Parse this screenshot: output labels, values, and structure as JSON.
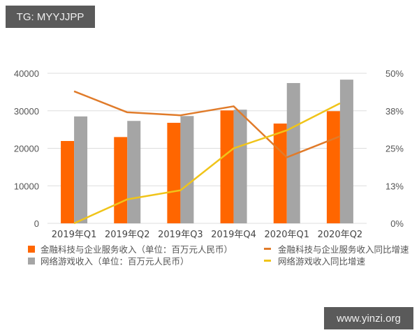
{
  "watermarks": {
    "top_left": "TG: MYYJJPP",
    "bottom_right": "www.yinzi.org"
  },
  "colors": {
    "fintech_bar": "#ff6600",
    "games_bar": "#a5a5a5",
    "fintech_line": "#e07b2a",
    "games_line": "#f0c419",
    "grid": "#dddddd",
    "badge_bg": "#5a5a5a"
  },
  "legend": [
    {
      "label": "金融科技与企业服务收入（单位：百万元人民币）",
      "type": "bar",
      "color": "#ff6600"
    },
    {
      "label": "网络游戏收入（单位：百万元人民币）",
      "type": "bar",
      "color": "#a5a5a5"
    },
    {
      "label": "金融科技与企业服务收入同比增速",
      "type": "line",
      "color": "#e07b2a"
    },
    {
      "label": "网络游戏收入同比增速",
      "type": "line",
      "color": "#f0c419"
    }
  ],
  "chart_data": {
    "type": "bar",
    "title": "",
    "xlabel": "",
    "ylabel": "",
    "categories": [
      "2019年Q1",
      "2019年Q2",
      "2019年Q3",
      "2019年Q4",
      "2020年Q1",
      "2020年Q2"
    ],
    "series": [
      {
        "name": "金融科技与企业服务收入（单位：百万元人民币）",
        "type": "bar",
        "axis": "left",
        "color": "#ff6600",
        "values": [
          21950,
          23000,
          26800,
          30100,
          26600,
          29900
        ]
      },
      {
        "name": "网络游戏收入（单位：百万元人民币）",
        "type": "bar",
        "axis": "left",
        "color": "#a5a5a5",
        "values": [
          28500,
          27300,
          28600,
          30300,
          37400,
          38300
        ]
      },
      {
        "name": "金融科技与企业服务收入同比增速",
        "type": "line",
        "axis": "right",
        "color": "#e07b2a",
        "values": [
          44,
          37,
          36,
          39,
          22,
          29
        ]
      },
      {
        "name": "网络游戏收入同比增速",
        "type": "line",
        "axis": "right",
        "color": "#f0c419",
        "values": [
          0,
          8,
          11,
          25,
          31,
          40
        ]
      }
    ],
    "ylim": [
      0,
      40000
    ],
    "y_ticks": [
      "0",
      "10000",
      "20000",
      "30000",
      "40000"
    ],
    "y2lim": [
      0,
      50
    ],
    "y2_ticks": [
      "0%",
      "13%",
      "25%",
      "38%",
      "50%"
    ],
    "grid": true,
    "legend_position": "bottom"
  }
}
